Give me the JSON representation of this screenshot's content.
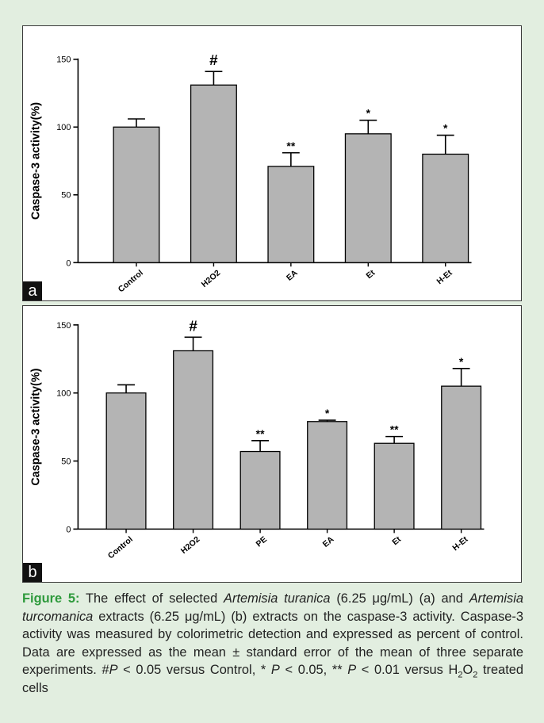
{
  "chart_data": [
    {
      "panel_label": "a",
      "type": "bar",
      "ylabel": "Caspase-3 activity(%)",
      "ylim": [
        0,
        150
      ],
      "yticks": [
        "0",
        "50",
        "100",
        "150"
      ],
      "categories": [
        "Control",
        "H2O2",
        "EA",
        "Et",
        "H-Et"
      ],
      "values": [
        100,
        131,
        71,
        95,
        80
      ],
      "errors": [
        6,
        10,
        10,
        10,
        14
      ],
      "annotations": [
        "",
        "#",
        "**",
        "*",
        "*"
      ],
      "bar_color": "#b4b4b4",
      "grid": false
    },
    {
      "panel_label": "b",
      "type": "bar",
      "ylabel": "Caspase-3 activity(%)",
      "ylim": [
        0,
        150
      ],
      "yticks": [
        "0",
        "50",
        "100",
        "150"
      ],
      "categories": [
        "Control",
        "H2O2",
        "PE",
        "EA",
        "Et",
        "H-Et"
      ],
      "values": [
        100,
        131,
        57,
        79,
        63,
        105
      ],
      "errors": [
        6,
        10,
        8,
        1,
        5,
        13
      ],
      "annotations": [
        "",
        "#",
        "**",
        "*",
        "**",
        "*"
      ],
      "bar_color": "#b4b4b4",
      "grid": false
    }
  ],
  "caption": {
    "label": "Figure 5:",
    "t1": " The effect of selected ",
    "species_a": "Artemisia turanica",
    "t2": " (6.25 μg/mL) (a) and ",
    "species_b": "Artemisia turcomanica",
    "t3": " extracts (6.25 μg/mL) (b) extracts on the caspase-3 activity. Caspase-3 activity was measured by colorimetric detection and expressed as percent of control. Data are expressed as the mean ± standard error of the mean of three separate experiments. #",
    "p1": "P",
    "t4": " < 0.05 versus Control, * ",
    "p2": "P",
    "t5": " < 0.05, ** ",
    "p3": "P",
    "t6": " < 0.01 versus H",
    "sub1": "2",
    "t7": "O",
    "sub2": "2",
    "t8": " treated cells"
  },
  "colors": {
    "background": "#e2eee0",
    "figure_label": "#2e9a3c"
  }
}
